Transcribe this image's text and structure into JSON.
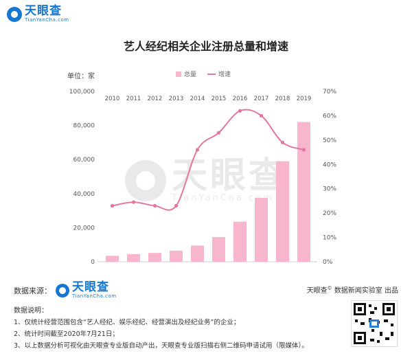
{
  "brand": {
    "name": "天眼查",
    "domain": "TianYanCha.com"
  },
  "chart_data": {
    "type": "bar",
    "title": "艺人经纪相关企业注册总量和增速",
    "unit_label": "单位：家",
    "categories": [
      "2010",
      "2011",
      "2012",
      "2013",
      "2014",
      "2015",
      "2016",
      "2017",
      "2018",
      "2019"
    ],
    "series": [
      {
        "name": "总量",
        "type": "bar",
        "axis": "left",
        "color": "#f7b6cd",
        "values": [
          3500,
          4500,
          5200,
          6500,
          9500,
          14500,
          23500,
          37500,
          59000,
          82000
        ]
      },
      {
        "name": "增速",
        "type": "line",
        "axis": "right",
        "color": "#e6759f",
        "values": [
          23,
          24.5,
          23,
          23,
          46,
          53,
          62,
          60,
          49,
          46
        ]
      }
    ],
    "y_left": {
      "min": 0,
      "max": 100000,
      "ticks": [
        "0",
        "20,000",
        "40,000",
        "60,000",
        "80,000",
        "100,000"
      ]
    },
    "y_right": {
      "min": 0,
      "max": 70,
      "ticks": [
        "0%",
        "10%",
        "20%",
        "30%",
        "40%",
        "50%",
        "60%",
        "70%"
      ]
    },
    "grid": false,
    "legend_position": "top-center"
  },
  "footer": {
    "source_label": "数据来源：",
    "producer_text": "天眼查",
    "producer_suffix": "数据新闻实验室 出品",
    "notes_title": "数据说明：",
    "notes": [
      "1、仅统计经营范围包含“艺人经纪、娱乐经纪、经营演出及经纪业务”的企业；",
      "2、统计时间截至2020年7月21日；",
      "3、以上数据分析可视化由天眼查专业版自动产出，天眼查专业版扫描右侧二维码申请试用（限媒体）。"
    ]
  }
}
